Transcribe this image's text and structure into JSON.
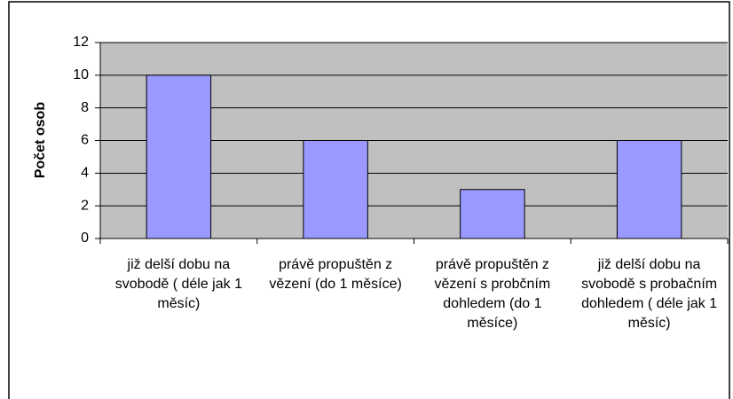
{
  "chart_data": {
    "type": "bar",
    "ylabel": "Počet osob",
    "categories": [
      "již delší dobu na svobodě ( déle jak 1 měsíc)",
      "právě propuštěn z vězení (do 1 měsíce)",
      "právě propuštěn z vězení s probčním dohledem (do 1 měsíce)",
      "již delší dobu na svobodě s probačním dohledem ( déle jak 1 měsíc)"
    ],
    "values": [
      10,
      6,
      3,
      6
    ],
    "color": "#9999ff",
    "plot_background": "#c0c0c0",
    "ylim": [
      0,
      12
    ],
    "yticks": [
      0,
      2,
      4,
      6,
      8,
      10,
      12
    ],
    "grid": true
  }
}
